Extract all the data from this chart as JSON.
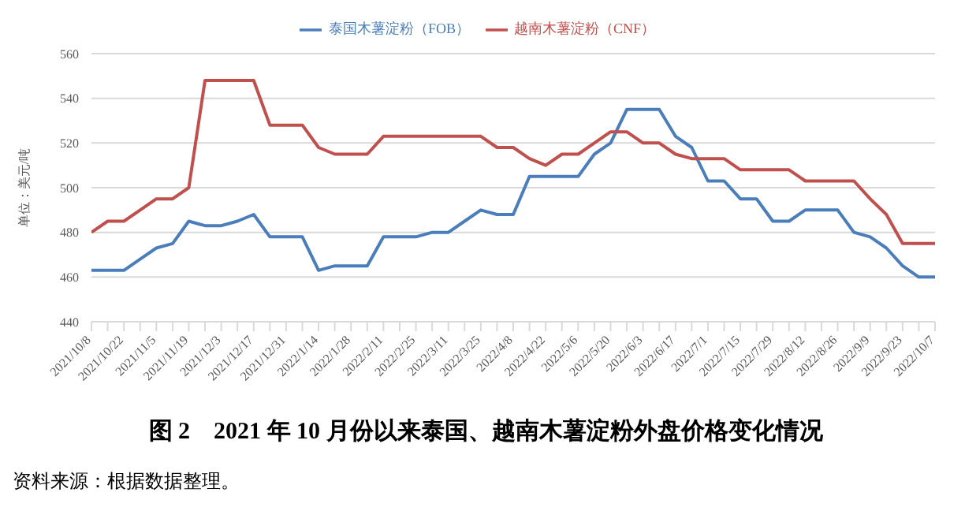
{
  "chart_data": {
    "type": "line",
    "title": "图 2　2021 年 10 月份以来泰国、越南木薯淀粉外盘价格变化情况",
    "ylabel": "单位：美元/吨",
    "annotations": [
      "资料来源：根据数据整理。"
    ],
    "categories": [
      "2021/10/8",
      null,
      "2021/10/22",
      null,
      "2021/11/5",
      null,
      "2021/11/19",
      null,
      "2021/12/3",
      null,
      "2021/12/17",
      null,
      "2021/12/31",
      null,
      "2022/1/14",
      null,
      "2022/1/28",
      null,
      "2022/2/11",
      null,
      "2022/2/25",
      null,
      "2022/3/11",
      null,
      "2022/3/25",
      null,
      "2022/4/8",
      null,
      "2022/4/22",
      null,
      "2022/5/6",
      null,
      "2022/5/20",
      null,
      "2022/6/3",
      null,
      "2022/6/17",
      null,
      "2022/7/1",
      null,
      "2022/7/15",
      null,
      "2022/7/29",
      null,
      "2022/8/12",
      null,
      "2022/8/26",
      null,
      "2022/9/9",
      null,
      "2022/9/23",
      null,
      "2022/10/7"
    ],
    "series": [
      {
        "name": "泰国木薯淀粉（FOB）",
        "color": "#4a7ebb",
        "values": [
          463,
          463,
          463,
          468,
          473,
          475,
          485,
          483,
          483,
          485,
          488,
          478,
          478,
          478,
          463,
          465,
          465,
          465,
          478,
          478,
          478,
          480,
          480,
          485,
          490,
          488,
          488,
          505,
          505,
          505,
          505,
          515,
          520,
          535,
          535,
          535,
          523,
          518,
          503,
          503,
          495,
          495,
          485,
          485,
          490,
          490,
          490,
          480,
          478,
          473,
          465,
          460,
          460
        ]
      },
      {
        "name": "越南木薯淀粉（CNF）",
        "color": "#c0504d",
        "values": [
          480,
          485,
          485,
          490,
          495,
          495,
          500,
          548,
          548,
          548,
          548,
          528,
          528,
          528,
          518,
          515,
          515,
          515,
          523,
          523,
          523,
          523,
          523,
          523,
          523,
          518,
          518,
          513,
          510,
          515,
          515,
          520,
          525,
          525,
          520,
          520,
          515,
          513,
          513,
          513,
          508,
          508,
          508,
          508,
          503,
          503,
          503,
          503,
          495,
          488,
          475,
          475,
          475
        ]
      }
    ],
    "ylim": [
      440,
      560
    ],
    "yticks": [
      440,
      460,
      480,
      500,
      520,
      540,
      560
    ],
    "grid": "y",
    "legend": "top",
    "marker": "none",
    "line_style": "solid"
  }
}
